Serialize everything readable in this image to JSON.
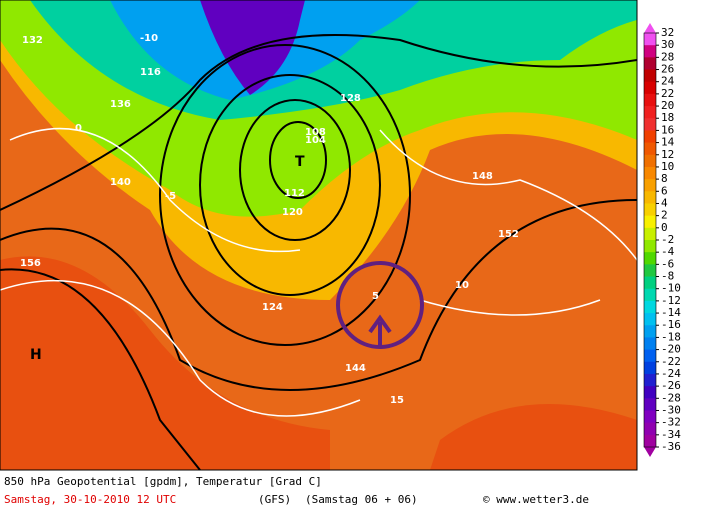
{
  "legend": {
    "ticks": [
      32,
      30,
      28,
      26,
      24,
      22,
      20,
      18,
      16,
      14,
      12,
      10,
      8,
      6,
      4,
      2,
      0,
      -2,
      -4,
      -6,
      -8,
      -10,
      -12,
      -14,
      -16,
      -18,
      -20,
      -22,
      -24,
      -26,
      -28,
      -30,
      -32,
      -34,
      -36
    ],
    "colors": [
      "#f050f0",
      "#d00080",
      "#b00030",
      "#c00000",
      "#d80000",
      "#e81010",
      "#f02020",
      "#f03030",
      "#f04000",
      "#f05800",
      "#f07000",
      "#f88800",
      "#f8a000",
      "#f8b800",
      "#f8d000",
      "#f8f000",
      "#c8f000",
      "#90e800",
      "#50d800",
      "#20c840",
      "#00d080",
      "#00d8b0",
      "#00d8e0",
      "#00c0f0",
      "#00a0f0",
      "#0080f0",
      "#0060f0",
      "#0040e0",
      "#2020d0",
      "#4000c0",
      "#6000c0",
      "#8000c0",
      "#9000b0",
      "#a000a0"
    ]
  },
  "map_labels": [
    "144",
    "140",
    "136",
    "132",
    "128",
    "124",
    "120",
    "116",
    "112",
    "108",
    "104",
    "148",
    "152",
    "156",
    "T",
    "H",
    "-5",
    "5",
    "10",
    "15",
    "0",
    "-10"
  ],
  "footer": {
    "title": "850 hPa Geopotential [gpdm], Temperatur [Grad C]",
    "date": "Samstag, 30-10-2010  12 UTC",
    "model": "(GFS)",
    "run": "(Samstag 06 + 06)",
    "source": "© www.wetter3.de"
  }
}
